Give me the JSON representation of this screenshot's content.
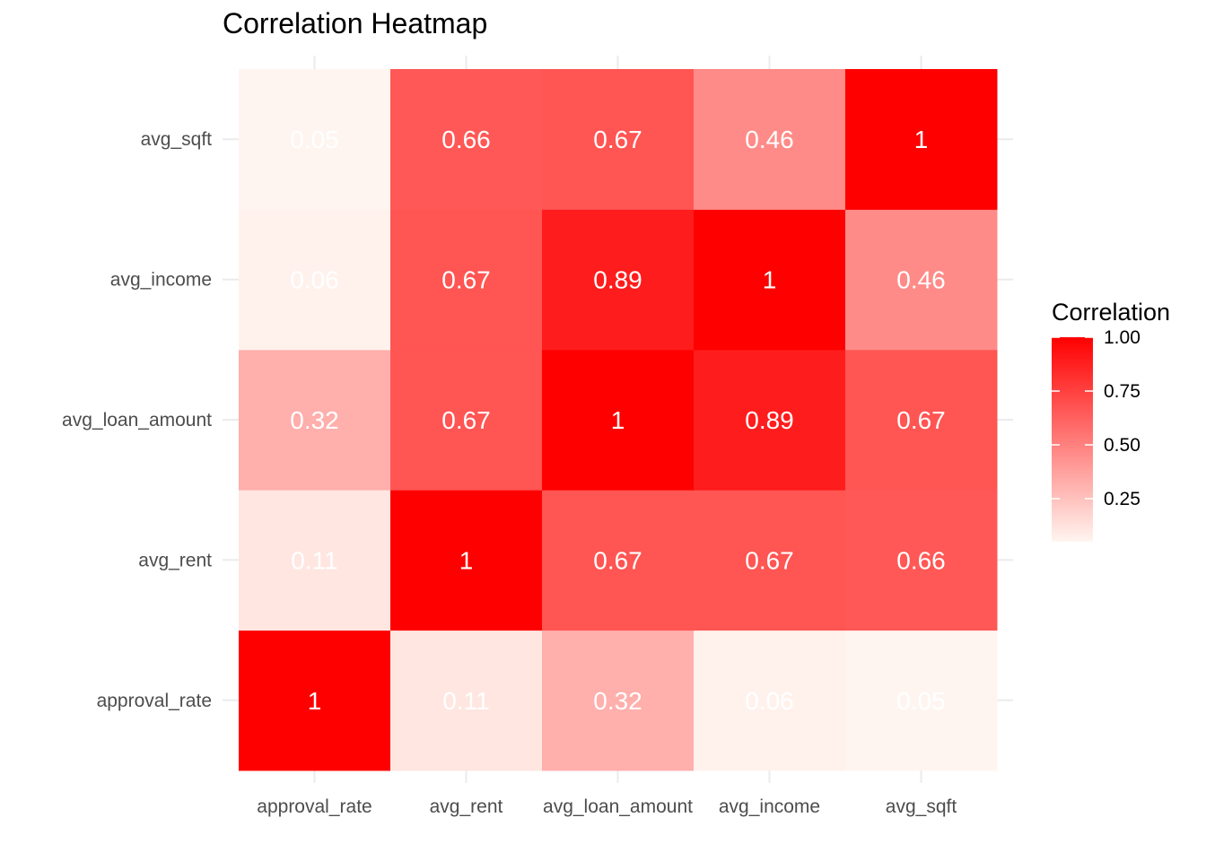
{
  "chart_data": {
    "type": "heatmap",
    "title": "Correlation Heatmap",
    "xlabel": "",
    "ylabel": "",
    "x_categories": [
      "approval_rate",
      "avg_rent",
      "avg_loan_amount",
      "avg_income",
      "avg_sqft"
    ],
    "y_categories": [
      "approval_rate",
      "avg_rent",
      "avg_loan_amount",
      "avg_income",
      "avg_sqft"
    ],
    "values": [
      [
        1,
        0.11,
        0.32,
        0.06,
        0.05
      ],
      [
        0.11,
        1,
        0.67,
        0.67,
        0.66
      ],
      [
        0.32,
        0.67,
        1,
        0.89,
        0.67
      ],
      [
        0.06,
        0.67,
        0.89,
        1,
        0.46
      ],
      [
        0.05,
        0.66,
        0.67,
        0.46,
        1
      ]
    ],
    "value_labels": [
      [
        "1",
        "0.11",
        "0.32",
        "0.06",
        "0.05"
      ],
      [
        "0.11",
        "1",
        "0.67",
        "0.67",
        "0.66"
      ],
      [
        "0.32",
        "0.67",
        "1",
        "0.89",
        "0.67"
      ],
      [
        "0.06",
        "0.67",
        "0.89",
        "1",
        "0.46"
      ],
      [
        "0.05",
        "0.66",
        "0.67",
        "0.46",
        "1"
      ]
    ],
    "color_scale": {
      "low": "#fff5f0",
      "high": "#ff0000",
      "min": 0.05,
      "max": 1
    },
    "legend": {
      "title": "Correlation",
      "ticks": [
        "1.00",
        "0.75",
        "0.50",
        "0.25"
      ],
      "tick_values": [
        1.0,
        0.75,
        0.5,
        0.25
      ],
      "placement": "right"
    },
    "grid": true
  }
}
